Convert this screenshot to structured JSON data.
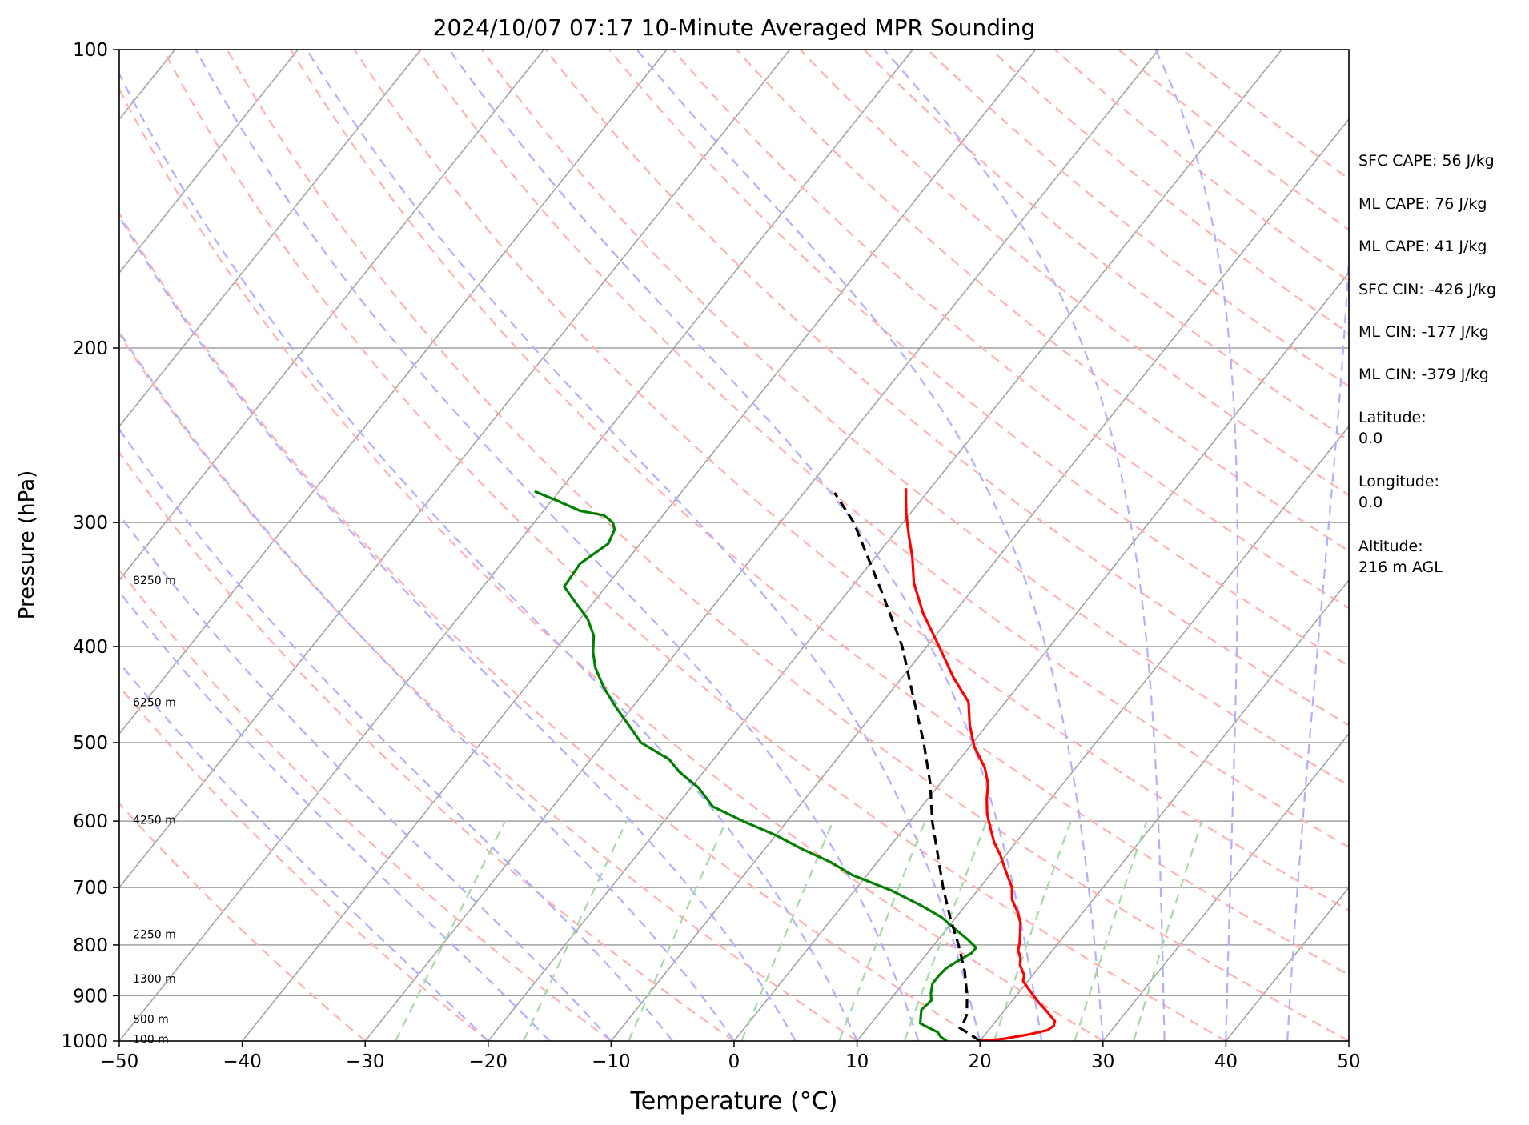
{
  "chart_data": {
    "type": "line",
    "title": "2024/10/07 07:17 10-Minute Averaged MPR Sounding",
    "xlabel": "Temperature (°C)",
    "ylabel": "Pressure (hPa)",
    "xlim": [
      -50,
      50
    ],
    "ylim": [
      1000,
      100
    ],
    "y_scale": "log",
    "grid": true,
    "x_ticks": [
      "−50",
      "−40",
      "−30",
      "−20",
      "−10",
      "0",
      "10",
      "20",
      "30",
      "40",
      "50"
    ],
    "y_ticks": [
      {
        "p": 1000,
        "label": "1000"
      },
      {
        "p": 900,
        "label": "900"
      },
      {
        "p": 800,
        "label": "800"
      },
      {
        "p": 700,
        "label": "700"
      },
      {
        "p": 600,
        "label": "600"
      },
      {
        "p": 500,
        "label": "500"
      },
      {
        "p": 400,
        "label": "400"
      },
      {
        "p": 300,
        "label": "300"
      },
      {
        "p": 200,
        "label": "200"
      },
      {
        "p": 100,
        "label": "100"
      }
    ],
    "height_labels": [
      {
        "p": 995,
        "label": "100 m"
      },
      {
        "p": 950,
        "label": "500 m"
      },
      {
        "p": 865,
        "label": "1300 m"
      },
      {
        "p": 780,
        "label": "2250 m"
      },
      {
        "p": 598,
        "label": "4250 m"
      },
      {
        "p": 455,
        "label": "6250 m"
      },
      {
        "p": 343,
        "label": "8250 m"
      }
    ],
    "series": [
      {
        "role": "temperature",
        "color": "#ff0000",
        "style": "solid",
        "points": [
          [
            1000,
            20.0
          ],
          [
            995,
            21.8
          ],
          [
            985,
            23.5
          ],
          [
            975,
            24.8
          ],
          [
            965,
            25.0
          ],
          [
            955,
            24.8
          ],
          [
            945,
            24.2
          ],
          [
            930,
            23.3
          ],
          [
            915,
            22.3
          ],
          [
            900,
            21.4
          ],
          [
            885,
            20.5
          ],
          [
            870,
            19.6
          ],
          [
            858,
            19.3
          ],
          [
            848,
            18.8
          ],
          [
            838,
            18.3
          ],
          [
            825,
            17.9
          ],
          [
            810,
            17.2
          ],
          [
            795,
            16.8
          ],
          [
            780,
            16.3
          ],
          [
            760,
            15.6
          ],
          [
            740,
            14.6
          ],
          [
            720,
            13.4
          ],
          [
            700,
            12.6
          ],
          [
            670,
            10.8
          ],
          [
            650,
            9.6
          ],
          [
            630,
            8.2
          ],
          [
            610,
            7.0
          ],
          [
            590,
            5.8
          ],
          [
            570,
            4.8
          ],
          [
            550,
            3.9
          ],
          [
            530,
            2.6
          ],
          [
            505,
            0.4
          ],
          [
            480,
            -1.4
          ],
          [
            455,
            -3.0
          ],
          [
            430,
            -5.8
          ],
          [
            400,
            -9.0
          ],
          [
            370,
            -12.5
          ],
          [
            345,
            -15.2
          ],
          [
            325,
            -17.0
          ],
          [
            310,
            -18.6
          ],
          [
            295,
            -20.2
          ],
          [
            285,
            -21.2
          ],
          [
            277,
            -22.0
          ]
        ]
      },
      {
        "role": "dewpoint",
        "color": "#008000",
        "style": "solid",
        "points": [
          [
            1000,
            17.3
          ],
          [
            990,
            16.5
          ],
          [
            980,
            16.0
          ],
          [
            970,
            15.0
          ],
          [
            960,
            14.0
          ],
          [
            945,
            13.6
          ],
          [
            930,
            13.2
          ],
          [
            910,
            13.4
          ],
          [
            895,
            12.9
          ],
          [
            875,
            12.4
          ],
          [
            860,
            12.4
          ],
          [
            845,
            12.5
          ],
          [
            830,
            13.0
          ],
          [
            815,
            13.6
          ],
          [
            805,
            13.6
          ],
          [
            790,
            12.4
          ],
          [
            770,
            10.6
          ],
          [
            750,
            8.8
          ],
          [
            730,
            6.4
          ],
          [
            705,
            3.0
          ],
          [
            680,
            -1.2
          ],
          [
            660,
            -3.8
          ],
          [
            640,
            -7.0
          ],
          [
            620,
            -10.0
          ],
          [
            600,
            -13.6
          ],
          [
            580,
            -17.0
          ],
          [
            555,
            -19.4
          ],
          [
            535,
            -22.0
          ],
          [
            520,
            -23.6
          ],
          [
            500,
            -27.0
          ],
          [
            485,
            -28.6
          ],
          [
            460,
            -31.4
          ],
          [
            440,
            -33.6
          ],
          [
            420,
            -35.6
          ],
          [
            405,
            -36.8
          ],
          [
            390,
            -37.8
          ],
          [
            375,
            -39.4
          ],
          [
            360,
            -41.6
          ],
          [
            348,
            -43.4
          ],
          [
            330,
            -43.6
          ],
          [
            315,
            -42.6
          ],
          [
            305,
            -43.0
          ],
          [
            300,
            -43.6
          ],
          [
            295,
            -44.8
          ],
          [
            292,
            -47.0
          ],
          [
            285,
            -49.6
          ],
          [
            279,
            -52.0
          ]
        ]
      },
      {
        "role": "parcel",
        "color": "#000000",
        "style": "dashed",
        "points": [
          [
            1000,
            20.0
          ],
          [
            985,
            18.8
          ],
          [
            970,
            17.5
          ],
          [
            960,
            17.5
          ],
          [
            940,
            17.2
          ],
          [
            900,
            16.0
          ],
          [
            850,
            14.2
          ],
          [
            800,
            12.0
          ],
          [
            750,
            9.5
          ],
          [
            700,
            7.0
          ],
          [
            650,
            4.5
          ],
          [
            600,
            1.8
          ],
          [
            550,
            -0.8
          ],
          [
            500,
            -4.0
          ],
          [
            450,
            -7.8
          ],
          [
            400,
            -12.0
          ],
          [
            350,
            -17.5
          ],
          [
            300,
            -24.0
          ],
          [
            280,
            -27.5
          ]
        ]
      }
    ],
    "reference_lines": {
      "isotherms_color": "#a0a0a0",
      "dry_adiabats_color": "#ffb0b0",
      "moist_adiabats_color": "#b0b0ff",
      "mixing_ratio_color": "#a8d8a8"
    }
  },
  "info_panel": [
    "SFC CAPE: 56 J/kg",
    "ML CAPE: 76 J/kg",
    "ML CAPE: 41 J/kg",
    "SFC CIN: -426 J/kg",
    "ML CIN: -177 J/kg",
    "ML CIN: -379 J/kg",
    "Latitude:",
    "0.0",
    "Longitude:",
    "0.0",
    "Altitude:",
    "216 m AGL"
  ]
}
